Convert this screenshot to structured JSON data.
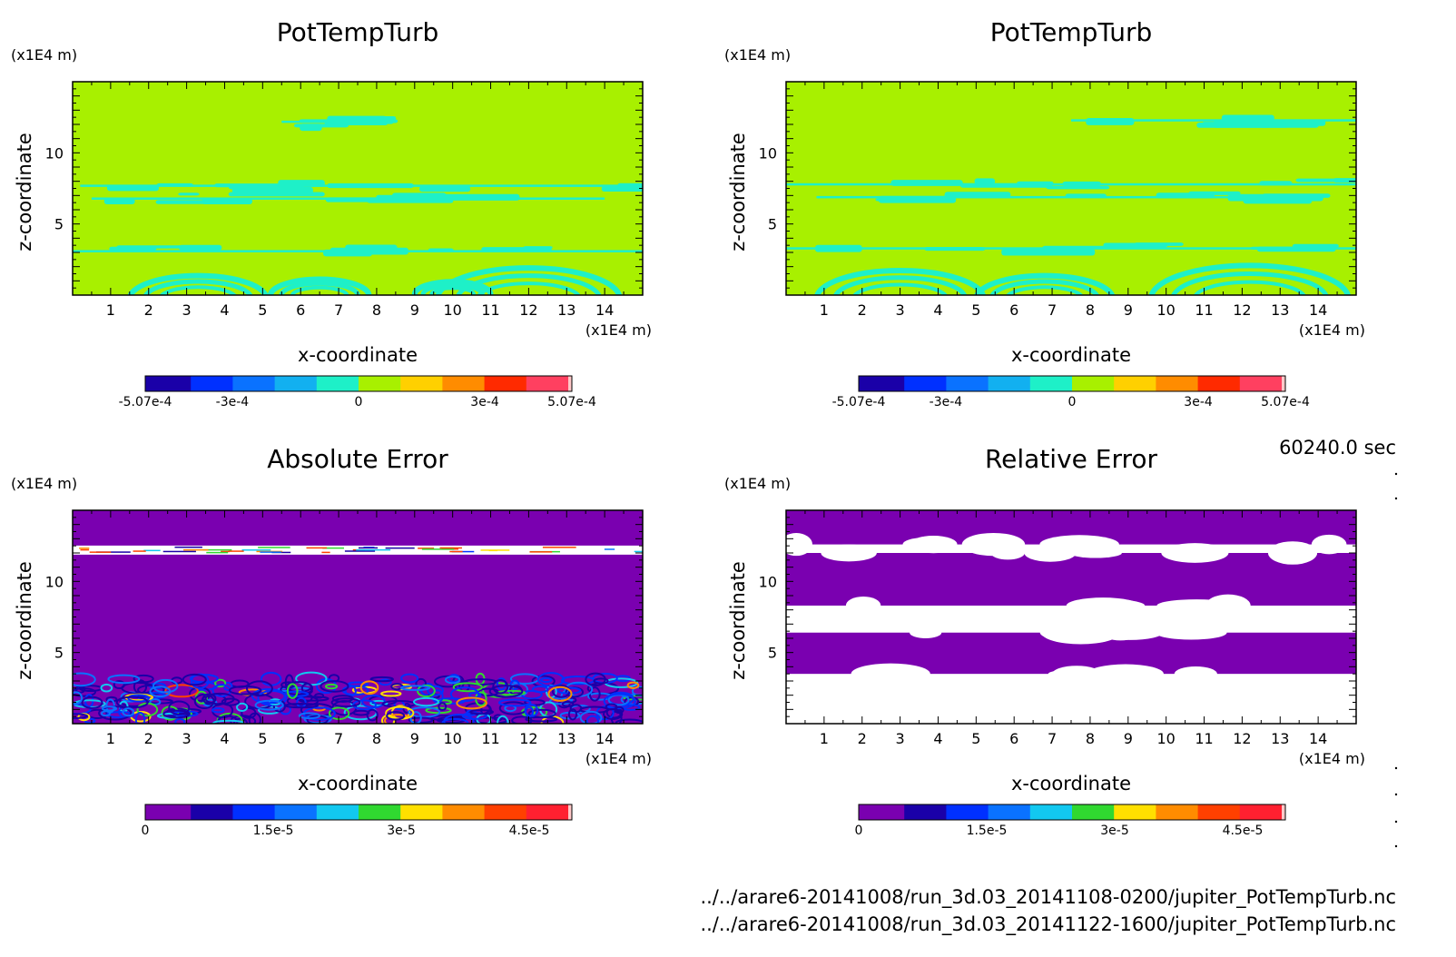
{
  "time_label": "60240.0 sec",
  "file_lines": [
    "../../arare6-20141008/run_3d.03_20141108-0200/jupiter_PotTempTurb.nc",
    "../../arare6-20141008/run_3d.03_20141122-1600/jupiter_PotTempTurb.nc"
  ],
  "chart_data": [
    {
      "id": "tl",
      "type": "heatmap",
      "title": "PotTempTurb",
      "xlabel": "x-coordinate",
      "ylabel": "z-coordinate",
      "x_unit": "(x1E4 m)",
      "y_unit": "(x1E4 m)",
      "xlim": [
        0,
        15
      ],
      "ylim": [
        0,
        15
      ],
      "x_ticks": [
        1,
        2,
        3,
        4,
        5,
        6,
        7,
        8,
        9,
        10,
        11,
        12,
        13,
        14
      ],
      "y_ticks": [
        5,
        10
      ],
      "background_color": "#a8f000",
      "colorbar": {
        "colors": [
          "#1a00a8",
          "#0030ff",
          "#0a72ff",
          "#12b0f0",
          "#1ef0c8",
          "#a8f000",
          "#ffd000",
          "#ff8c00",
          "#ff2a00",
          "#ff4060"
        ],
        "tick_labels": [
          "-5.07e-4",
          "-3e-4",
          "0",
          "3e-4",
          "5.07e-4"
        ],
        "tick_values": [
          -0.000507,
          -0.0003,
          0,
          0.0003,
          0.000507
        ],
        "range": [
          -0.000507,
          0.000507
        ]
      },
      "features": [
        {
          "kind": "band",
          "color": "#1ef0c8",
          "y": 12.2,
          "x0": 5.5,
          "x1": 8.2
        },
        {
          "kind": "band",
          "color": "#1ef0c8",
          "y": 7.7,
          "x0": 0.2,
          "x1": 15
        },
        {
          "kind": "band",
          "color": "#1ef0c8",
          "y": 6.8,
          "x0": 0.5,
          "x1": 14
        },
        {
          "kind": "band",
          "color": "#1ef0c8",
          "y": 3.1,
          "x0": 0,
          "x1": 15
        },
        {
          "kind": "arc",
          "color": "#1ef0c8",
          "cx": 3.3,
          "cy": 0,
          "r": 1.8
        },
        {
          "kind": "arc",
          "color": "#1ef0c8",
          "cx": 6.5,
          "cy": 0.2,
          "r": 1.3
        },
        {
          "kind": "arc",
          "color": "#1ef0c8",
          "cx": 12.0,
          "cy": 0,
          "r": 2.4
        },
        {
          "kind": "arc",
          "color": "#1ef0c8",
          "cx": 10.0,
          "cy": 0.3,
          "r": 1.0
        }
      ]
    },
    {
      "id": "tr",
      "type": "heatmap",
      "title": "PotTempTurb",
      "xlabel": "x-coordinate",
      "ylabel": "z-coordinate",
      "x_unit": "(x1E4 m)",
      "y_unit": "(x1E4 m)",
      "xlim": [
        0,
        15
      ],
      "ylim": [
        0,
        15
      ],
      "x_ticks": [
        1,
        2,
        3,
        4,
        5,
        6,
        7,
        8,
        9,
        10,
        11,
        12,
        13,
        14
      ],
      "y_ticks": [
        5,
        10
      ],
      "background_color": "#a8f000",
      "colorbar": {
        "colors": [
          "#1a00a8",
          "#0030ff",
          "#0a72ff",
          "#12b0f0",
          "#1ef0c8",
          "#a8f000",
          "#ffd000",
          "#ff8c00",
          "#ff2a00",
          "#ff4060"
        ],
        "tick_labels": [
          "-5.07e-4",
          "-3e-4",
          "0",
          "3e-4",
          "5.07e-4"
        ],
        "tick_values": [
          -0.000507,
          -0.0003,
          0,
          0.0003,
          0.000507
        ],
        "range": [
          -0.000507,
          0.000507
        ]
      },
      "features": [
        {
          "kind": "band",
          "color": "#1ef0c8",
          "y": 12.3,
          "x0": 7.5,
          "x1": 15
        },
        {
          "kind": "band",
          "color": "#1ef0c8",
          "y": 7.8,
          "x0": 0,
          "x1": 15
        },
        {
          "kind": "band",
          "color": "#1ef0c8",
          "y": 6.9,
          "x0": 0.8,
          "x1": 13
        },
        {
          "kind": "band",
          "color": "#1ef0c8",
          "y": 3.3,
          "x0": 0,
          "x1": 15
        },
        {
          "kind": "arc",
          "color": "#1ef0c8",
          "cx": 3.0,
          "cy": 0,
          "r": 2.2
        },
        {
          "kind": "arc",
          "color": "#1ef0c8",
          "cx": 6.8,
          "cy": 0,
          "r": 1.8
        },
        {
          "kind": "arc",
          "color": "#1ef0c8",
          "cx": 12.2,
          "cy": 0,
          "r": 2.6
        }
      ]
    },
    {
      "id": "bl",
      "type": "heatmap",
      "title": "Absolute Error",
      "xlabel": "x-coordinate",
      "ylabel": "z-coordinate",
      "x_unit": "(x1E4 m)",
      "y_unit": "(x1E4 m)",
      "xlim": [
        0,
        15
      ],
      "ylim": [
        0,
        15
      ],
      "x_ticks": [
        1,
        2,
        3,
        4,
        5,
        6,
        7,
        8,
        9,
        10,
        11,
        12,
        13,
        14
      ],
      "y_ticks": [
        5,
        10
      ],
      "background_color": "#7a00b0",
      "colorbar": {
        "colors": [
          "#7a00b0",
          "#1a00a8",
          "#0030ff",
          "#0a72ff",
          "#12c8f0",
          "#30d830",
          "#ffe000",
          "#ff8c00",
          "#ff4000",
          "#ff2030"
        ],
        "tick_labels": [
          "0",
          "1.5e-5",
          "3e-5",
          "4.5e-5"
        ],
        "tick_values": [
          0,
          1.5e-05,
          3e-05,
          4.5e-05
        ],
        "range": [
          0,
          5e-05
        ]
      },
      "features": [
        {
          "kind": "noise_band",
          "y0": 0,
          "y1": 3.2
        },
        {
          "kind": "stripe",
          "y": 12.2
        }
      ]
    },
    {
      "id": "br",
      "type": "heatmap",
      "title": "Relative Error",
      "xlabel": "x-coordinate",
      "ylabel": "z-coordinate",
      "x_unit": "(x1E4 m)",
      "y_unit": "(x1E4 m)",
      "xlim": [
        0,
        15
      ],
      "ylim": [
        0,
        15
      ],
      "x_ticks": [
        1,
        2,
        3,
        4,
        5,
        6,
        7,
        8,
        9,
        10,
        11,
        12,
        13,
        14
      ],
      "y_ticks": [
        5,
        10
      ],
      "background_color": "#7a00b0",
      "colorbar": {
        "colors": [
          "#7a00b0",
          "#1a00a8",
          "#0030ff",
          "#0a72ff",
          "#12c8f0",
          "#30d830",
          "#ffe000",
          "#ff8c00",
          "#ff4000",
          "#ff2030"
        ],
        "tick_labels": [
          "0",
          "1.5e-5",
          "3e-5",
          "4.5e-5"
        ],
        "tick_values": [
          0,
          1.5e-05,
          3e-05,
          4.5e-05
        ],
        "range": [
          0,
          5e-05
        ]
      },
      "features": [
        {
          "kind": "white_band",
          "y0": 0,
          "y1": 3.5
        },
        {
          "kind": "white_band",
          "y0": 6.4,
          "y1": 8.3
        },
        {
          "kind": "white_band",
          "y0": 12.0,
          "y1": 12.6
        }
      ]
    }
  ]
}
